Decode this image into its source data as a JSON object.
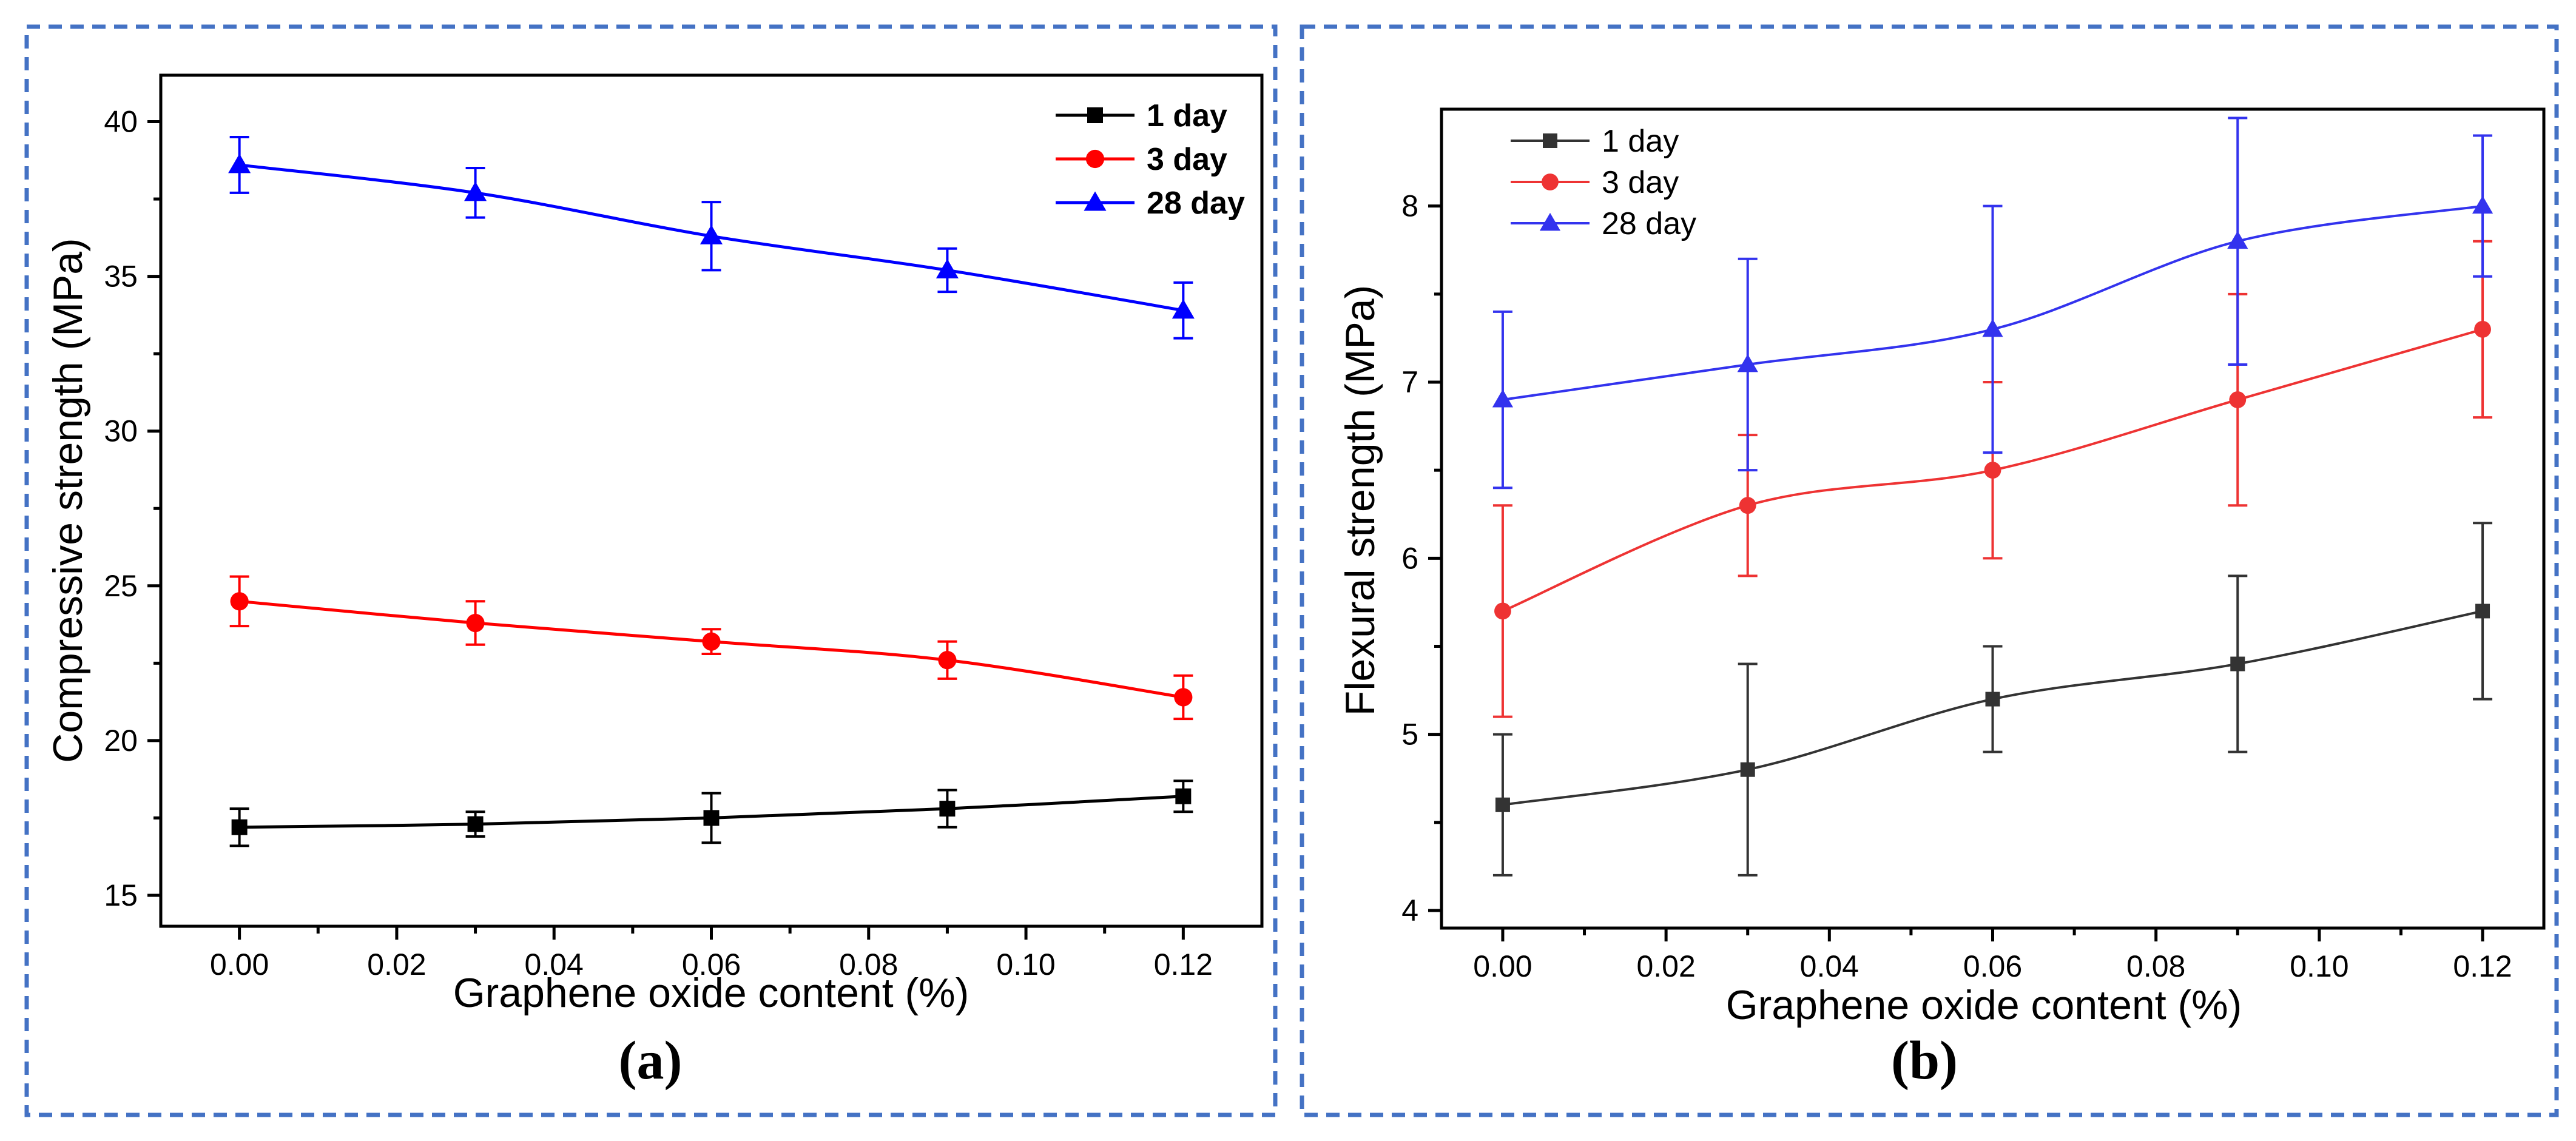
{
  "chart_data": [
    {
      "type": "line",
      "panel_label": "(a)",
      "xlabel": "Graphene oxide content (%)",
      "ylabel": "Compressive strength (MPa)",
      "xlim": [
        -0.01,
        0.13
      ],
      "ylim": [
        14,
        41.5
      ],
      "xticks": [
        0.0,
        0.02,
        0.04,
        0.06,
        0.08,
        0.1,
        0.12
      ],
      "xticklabels": [
        "0.00",
        "0.02",
        "0.04",
        "0.06",
        "0.08",
        "0.10",
        "0.12"
      ],
      "yticks": [
        15,
        20,
        25,
        30,
        35,
        40
      ],
      "yticklabels": [
        "15",
        "20",
        "25",
        "30",
        "35",
        "40"
      ],
      "legend_position": "top-right",
      "x": [
        0.0,
        0.03,
        0.06,
        0.09,
        0.12
      ],
      "series": [
        {
          "name": "1 day",
          "color": "#000000",
          "marker": "square",
          "values": [
            17.2,
            17.3,
            17.5,
            17.8,
            18.2
          ],
          "errors": [
            0.6,
            0.4,
            0.8,
            0.6,
            0.5
          ]
        },
        {
          "name": "3 day",
          "color": "#FF0000",
          "marker": "circle",
          "values": [
            24.5,
            23.8,
            23.2,
            22.6,
            21.4
          ],
          "errors": [
            0.8,
            0.7,
            0.4,
            0.6,
            0.7
          ]
        },
        {
          "name": "28 day",
          "color": "#0000FF",
          "marker": "triangle",
          "values": [
            38.6,
            37.7,
            36.3,
            35.2,
            33.9
          ],
          "errors": [
            0.9,
            0.8,
            1.1,
            0.7,
            0.9
          ]
        }
      ]
    },
    {
      "type": "line",
      "panel_label": "(b)",
      "xlabel": "Graphene oxide content (%)",
      "ylabel": "Flexural strength (MPa)",
      "xlim": [
        -0.0075,
        0.1275
      ],
      "ylim": [
        3.9,
        8.55
      ],
      "xticks": [
        0.0,
        0.02,
        0.04,
        0.06,
        0.08,
        0.1,
        0.12
      ],
      "xticklabels": [
        "0.00",
        "0.02",
        "0.04",
        "0.06",
        "0.08",
        "0.10",
        "0.12"
      ],
      "yticks": [
        4,
        5,
        6,
        7,
        8
      ],
      "yticklabels": [
        "4",
        "5",
        "6",
        "7",
        "8"
      ],
      "legend_position": "top-left",
      "x": [
        0.0,
        0.03,
        0.06,
        0.09,
        0.12
      ],
      "series": [
        {
          "name": "1 day",
          "color": "#333333",
          "marker": "square",
          "values": [
            4.6,
            4.8,
            5.2,
            5.4,
            5.7
          ],
          "errors": [
            0.4,
            0.6,
            0.3,
            0.5,
            0.5
          ]
        },
        {
          "name": "3 day",
          "color": "#EE3333",
          "marker": "circle",
          "values": [
            5.7,
            6.3,
            6.5,
            6.9,
            7.3
          ],
          "errors": [
            0.6,
            0.4,
            0.5,
            0.6,
            0.5
          ]
        },
        {
          "name": "28 day",
          "color": "#3333EE",
          "marker": "triangle",
          "values": [
            6.9,
            7.1,
            7.3,
            7.8,
            8.0
          ],
          "errors": [
            0.5,
            0.6,
            0.7,
            0.7,
            0.4
          ]
        }
      ]
    }
  ]
}
